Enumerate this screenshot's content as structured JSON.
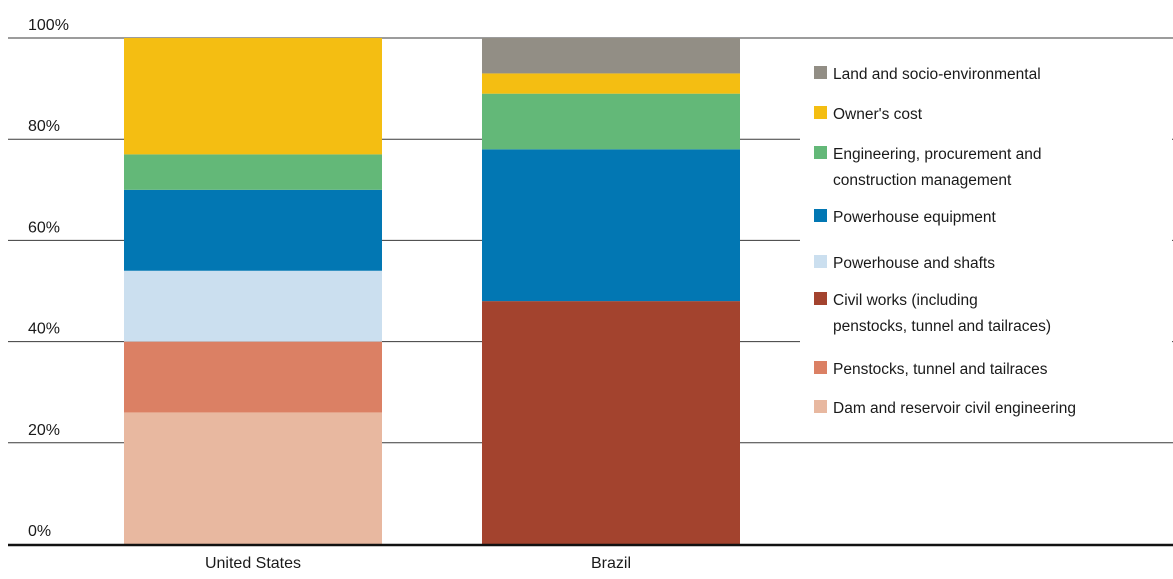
{
  "chart_data": {
    "type": "bar",
    "stacked": true,
    "categories": [
      "United States",
      "Brazil"
    ],
    "ylim": [
      0,
      100
    ],
    "yticks": [
      "0%",
      "20%",
      "40%",
      "60%",
      "80%",
      "100%"
    ],
    "grid": true,
    "legend_position": "right",
    "series": [
      {
        "name": "Dam and reservoir civil engineering",
        "color": "#E8B8A0",
        "values": [
          26,
          0
        ]
      },
      {
        "name": "Penstocks, tunnel and tailraces",
        "color": "#DB8064",
        "values": [
          14,
          0
        ]
      },
      {
        "name": "Civil works (including\npenstocks, tunnel and tailraces)",
        "color": "#A3432E",
        "values": [
          0,
          48
        ]
      },
      {
        "name": "Powerhouse and shafts",
        "color": "#CBDFEF",
        "values": [
          14,
          0
        ]
      },
      {
        "name": "Powerhouse equipment",
        "color": "#0277B3",
        "values": [
          16,
          30
        ]
      },
      {
        "name": "Engineering, procurement and\nconstruction management",
        "color": "#63B878",
        "values": [
          7,
          11
        ]
      },
      {
        "name": "Owner's cost",
        "color": "#F4BE12",
        "values": [
          23,
          4
        ]
      },
      {
        "name": "Land and socio-environmental",
        "color": "#928E85",
        "values": [
          0,
          7
        ]
      }
    ],
    "legend_order": [
      7,
      6,
      5,
      4,
      3,
      2,
      1,
      0
    ]
  }
}
